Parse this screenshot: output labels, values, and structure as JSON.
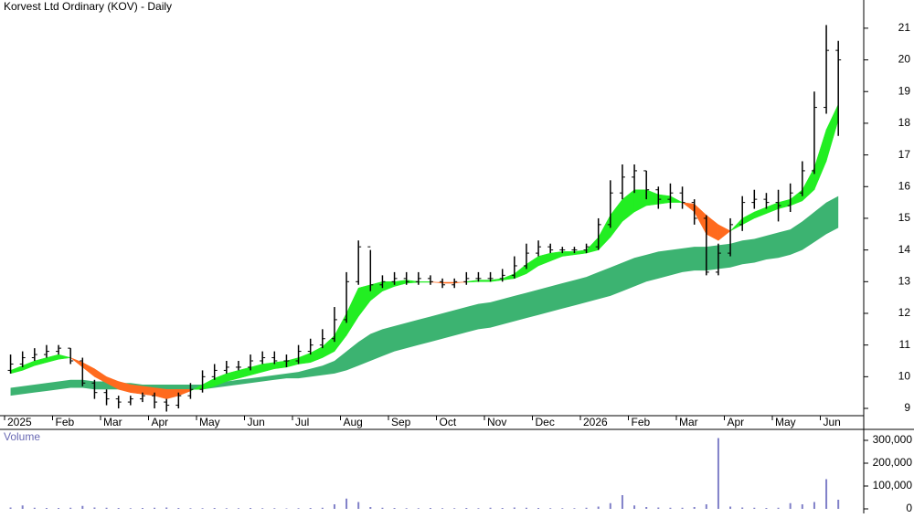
{
  "chart_data": {
    "type": "ohlc",
    "title": "Korvest Ltd Ordinary (KOV) - Daily",
    "categories": [
      "2025",
      "Feb",
      "Mar",
      "Apr",
      "May",
      "Jun",
      "Jul",
      "Aug",
      "Sep",
      "Oct",
      "Nov",
      "Dec",
      "2026",
      "Feb",
      "Mar",
      "Apr",
      "May",
      "Jun"
    ],
    "ylim": [
      8.77,
      21.89
    ],
    "yticks": [
      9,
      10,
      11,
      12,
      13,
      14,
      15,
      16,
      17,
      18,
      19,
      20,
      21
    ],
    "bar_color": "#000000",
    "open": [
      10.2,
      10.4,
      10.6,
      10.7,
      10.8,
      10.9,
      10.5,
      9.8,
      9.5,
      9.3,
      9.2,
      9.3,
      9.4,
      9.2,
      9.1,
      9.4,
      9.6,
      10.0,
      10.2,
      10.3,
      10.3,
      10.5,
      10.6,
      10.5,
      10.5,
      10.8,
      11.0,
      11.2,
      11.8,
      13.0,
      14.1,
      12.9,
      13.0,
      13.1,
      13.0,
      13.1,
      13.0,
      12.9,
      13.0,
      13.1,
      13.1,
      13.1,
      13.2,
      13.5,
      13.9,
      14.1,
      14.0,
      14.0,
      14.0,
      14.1,
      14.8,
      15.8,
      16.3,
      16.5,
      15.9,
      15.6,
      15.8,
      15.5,
      15.0,
      13.3,
      13.9,
      14.8,
      15.5,
      15.6,
      15.5,
      15.4,
      15.8,
      16.5,
      18.5,
      20.3,
      null,
      null
    ],
    "high": [
      10.7,
      10.8,
      10.9,
      11.0,
      11.0,
      10.9,
      10.6,
      9.9,
      9.6,
      9.4,
      9.4,
      9.5,
      9.5,
      9.3,
      9.5,
      9.8,
      10.2,
      10.4,
      10.5,
      10.5,
      10.7,
      10.8,
      10.8,
      10.7,
      11.0,
      11.2,
      11.5,
      12.2,
      13.3,
      14.3,
      14.0,
      13.2,
      13.3,
      13.3,
      13.3,
      13.2,
      13.1,
      13.1,
      13.3,
      13.3,
      13.3,
      13.4,
      13.8,
      14.2,
      14.3,
      14.2,
      14.1,
      14.1,
      14.2,
      15.0,
      16.2,
      16.7,
      16.7,
      16.5,
      16.0,
      16.1,
      16.0,
      15.6,
      15.1,
      14.2,
      15.0,
      15.7,
      15.9,
      15.8,
      15.9,
      16.1,
      16.8,
      19.0,
      21.1,
      20.6,
      null,
      null
    ],
    "low": [
      10.1,
      10.3,
      10.5,
      10.6,
      10.7,
      10.4,
      9.7,
      9.3,
      9.1,
      9.0,
      9.1,
      9.2,
      9.0,
      8.9,
      9.0,
      9.3,
      9.5,
      9.9,
      10.1,
      10.2,
      10.2,
      10.4,
      10.4,
      10.3,
      10.4,
      10.7,
      10.9,
      11.1,
      11.7,
      12.9,
      12.7,
      12.8,
      12.9,
      12.9,
      12.9,
      12.9,
      12.8,
      12.8,
      12.9,
      13.0,
      13.0,
      13.0,
      13.1,
      13.4,
      13.8,
      13.9,
      13.9,
      13.9,
      13.9,
      14.0,
      14.7,
      15.6,
      15.8,
      15.6,
      15.3,
      15.3,
      15.3,
      14.8,
      13.2,
      13.2,
      13.8,
      14.6,
      15.3,
      15.3,
      14.9,
      15.2,
      15.7,
      16.4,
      18.3,
      17.6,
      null,
      null
    ],
    "close": [
      10.4,
      10.6,
      10.7,
      10.8,
      10.9,
      10.5,
      9.8,
      9.5,
      9.3,
      9.2,
      9.3,
      9.4,
      9.2,
      9.1,
      9.4,
      9.6,
      10.0,
      10.2,
      10.3,
      10.3,
      10.5,
      10.6,
      10.5,
      10.5,
      10.8,
      11.0,
      11.2,
      11.8,
      13.0,
      14.1,
      12.9,
      13.0,
      13.1,
      13.0,
      13.1,
      13.0,
      12.9,
      13.0,
      13.1,
      13.1,
      13.1,
      13.2,
      13.5,
      13.9,
      14.1,
      14.0,
      14.0,
      14.0,
      14.1,
      14.8,
      15.8,
      16.3,
      16.5,
      15.9,
      15.6,
      15.8,
      15.5,
      15.0,
      13.3,
      13.9,
      14.8,
      15.5,
      15.6,
      15.5,
      15.4,
      15.8,
      16.5,
      18.5,
      20.3,
      20.0,
      null,
      null
    ],
    "fast_band": {
      "color_up": "#22ee22",
      "color_down": "#ff6a1e",
      "fast": [
        10.2,
        10.35,
        10.5,
        10.6,
        10.7,
        10.6,
        10.3,
        10.0,
        9.8,
        9.6,
        9.5,
        9.45,
        9.4,
        9.3,
        9.4,
        9.55,
        9.75,
        9.95,
        10.1,
        10.2,
        10.3,
        10.4,
        10.45,
        10.5,
        10.6,
        10.75,
        10.95,
        11.3,
        12.0,
        12.8,
        12.9,
        13.0,
        13.0,
        13.05,
        13.0,
        13.0,
        12.95,
        12.95,
        13.0,
        13.05,
        13.05,
        13.1,
        13.25,
        13.55,
        13.8,
        13.9,
        13.95,
        13.95,
        14.0,
        14.4,
        15.1,
        15.6,
        15.9,
        15.9,
        15.75,
        15.7,
        15.5,
        15.2,
        14.5,
        14.3,
        14.6,
        15.0,
        15.2,
        15.35,
        15.5,
        15.6,
        15.9,
        16.6,
        17.8,
        18.6,
        null,
        null
      ],
      "slow": [
        10.1,
        10.2,
        10.35,
        10.45,
        10.55,
        10.6,
        10.45,
        10.25,
        10.0,
        9.85,
        9.75,
        9.7,
        9.65,
        9.6,
        9.6,
        9.6,
        9.6,
        9.7,
        9.85,
        9.95,
        10.05,
        10.15,
        10.25,
        10.3,
        10.4,
        10.45,
        10.6,
        10.8,
        11.3,
        11.9,
        12.4,
        12.7,
        12.85,
        12.95,
        12.98,
        12.98,
        12.98,
        12.98,
        12.98,
        13.0,
        13.0,
        13.05,
        13.1,
        13.25,
        13.5,
        13.65,
        13.8,
        13.85,
        13.9,
        14.0,
        14.4,
        14.9,
        15.2,
        15.4,
        15.45,
        15.5,
        15.5,
        15.45,
        15.1,
        14.8,
        14.6,
        14.8,
        15.0,
        15.15,
        15.3,
        15.4,
        15.55,
        15.9,
        16.8,
        18.1,
        null,
        null
      ]
    },
    "slow_band": {
      "color": "#3cb371",
      "upper": [
        9.65,
        9.7,
        9.75,
        9.8,
        9.85,
        9.9,
        9.9,
        9.85,
        9.85,
        9.8,
        9.8,
        9.75,
        9.75,
        9.75,
        9.75,
        9.75,
        9.75,
        9.8,
        9.85,
        9.9,
        9.95,
        10.0,
        10.05,
        10.1,
        10.15,
        10.25,
        10.35,
        10.5,
        10.8,
        11.1,
        11.35,
        11.5,
        11.6,
        11.7,
        11.8,
        11.9,
        12.0,
        12.1,
        12.2,
        12.3,
        12.35,
        12.45,
        12.55,
        12.65,
        12.75,
        12.85,
        12.95,
        13.05,
        13.15,
        13.3,
        13.45,
        13.6,
        13.75,
        13.85,
        13.95,
        14.0,
        14.05,
        14.1,
        14.1,
        14.15,
        14.2,
        14.3,
        14.35,
        14.45,
        14.55,
        14.65,
        14.9,
        15.2,
        15.5,
        15.7,
        null,
        null
      ],
      "lower": [
        9.4,
        9.45,
        9.5,
        9.55,
        9.6,
        9.65,
        9.65,
        9.6,
        9.6,
        9.6,
        9.6,
        9.6,
        9.6,
        9.6,
        9.6,
        9.6,
        9.6,
        9.65,
        9.7,
        9.75,
        9.8,
        9.85,
        9.9,
        9.95,
        9.95,
        10.0,
        10.05,
        10.1,
        10.2,
        10.35,
        10.5,
        10.65,
        10.8,
        10.9,
        11.0,
        11.1,
        11.2,
        11.3,
        11.4,
        11.5,
        11.55,
        11.65,
        11.75,
        11.85,
        11.95,
        12.05,
        12.15,
        12.25,
        12.35,
        12.45,
        12.55,
        12.7,
        12.85,
        13.0,
        13.1,
        13.2,
        13.3,
        13.35,
        13.35,
        13.4,
        13.45,
        13.55,
        13.6,
        13.7,
        13.75,
        13.85,
        14.0,
        14.25,
        14.5,
        14.7,
        null,
        null
      ]
    },
    "volume": {
      "label": "Volume",
      "color": "#8080c8",
      "ylim": [
        -20000,
        376000
      ],
      "yticks": [
        0,
        {
          "value": 100000,
          "label": "100,000"
        },
        {
          "value": 200000,
          "label": "200,000"
        },
        {
          "value": 300000,
          "label": "300,000"
        }
      ],
      "values": [
        6000,
        15000,
        5000,
        4000,
        4000,
        5000,
        13000,
        6000,
        5000,
        4000,
        3000,
        4000,
        5000,
        6000,
        4000,
        3000,
        3000,
        4000,
        3000,
        3000,
        4000,
        3000,
        3000,
        2000,
        3000,
        4000,
        5000,
        20000,
        45000,
        30000,
        8000,
        5000,
        4000,
        3000,
        3000,
        4000,
        3000,
        3000,
        4000,
        3000,
        5000,
        4000,
        6000,
        5000,
        4000,
        3000,
        3000,
        3000,
        5000,
        10000,
        25000,
        60000,
        15000,
        8000,
        6000,
        5000,
        5000,
        8000,
        20000,
        310000,
        10000,
        6000,
        5000,
        4000,
        5000,
        25000,
        20000,
        30000,
        130000,
        40000,
        null,
        null
      ]
    }
  }
}
